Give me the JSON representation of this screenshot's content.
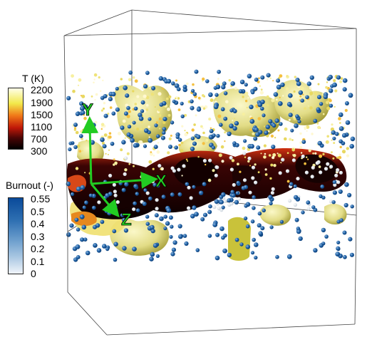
{
  "temperature_legend": {
    "title": "T (K)",
    "ticks": [
      "2200",
      "1900",
      "1500",
      "1100",
      "700",
      "300"
    ],
    "colors": [
      "#ffffe8",
      "#f2e84a",
      "#f07818",
      "#c01808",
      "#4a0606",
      "#000000"
    ]
  },
  "burnout_legend": {
    "title": "Burnout (-)",
    "ticks": [
      "0.55",
      "0.5",
      "0.4",
      "0.3",
      "0.2",
      "0.1",
      "0"
    ],
    "colors": [
      "#0a4a9a",
      "#2f70b2",
      "#6a9ccc",
      "#a9c7e2",
      "#e2ecf6"
    ]
  },
  "axes": {
    "x_label": "X",
    "y_label": "Y",
    "z_label": "Z",
    "axis_color": "#22cc22"
  },
  "scene_colors": {
    "flame_surface": "#e0dc88",
    "hot_core": "#1a0303",
    "particle_blue": "#2163a6"
  }
}
